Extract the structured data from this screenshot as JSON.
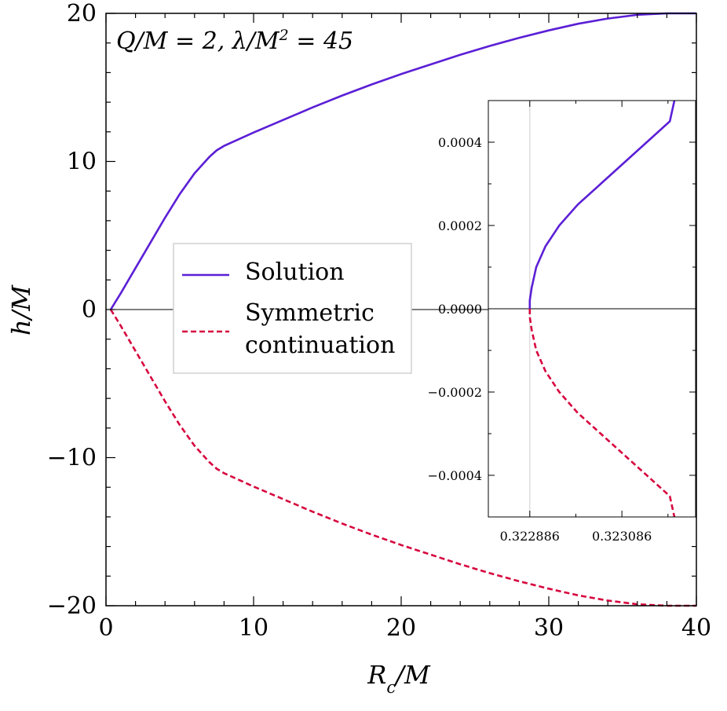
{
  "annotation_parts": [
    "Q/M = 2, λ/M",
    "2",
    " = 45"
  ],
  "chart_data": [
    {
      "type": "line",
      "xlabel_parts": [
        "R",
        "c",
        "/M"
      ],
      "ylabel": "h/M",
      "xlim": [
        0,
        40
      ],
      "ylim": [
        -20,
        20
      ],
      "xticks": [
        0,
        10,
        20,
        30,
        40
      ],
      "xtick_labels": [
        "0",
        "10",
        "20",
        "30",
        "40"
      ],
      "yticks": [
        -20,
        -10,
        0,
        10,
        20
      ],
      "ytick_labels": [
        "−20",
        "−10",
        "0",
        "10",
        "20"
      ],
      "grid": false,
      "legend_position": "center-left",
      "legend_entries": [
        {
          "lines": [
            "Solution"
          ],
          "color": "#5b1fd6",
          "style": "solid"
        },
        {
          "lines": [
            "Symmetric",
            "continuation"
          ],
          "color": "#d6073e",
          "style": "dashed"
        }
      ],
      "series": [
        {
          "color": "#5b1fd6",
          "style": "solid",
          "x": [
            0.32,
            1,
            2,
            3,
            4,
            5,
            6,
            7,
            7.5,
            8,
            9,
            10,
            12,
            14,
            16,
            18,
            20,
            22,
            24,
            26,
            28,
            30,
            32,
            34,
            36,
            38,
            40
          ],
          "y": [
            0,
            1.1,
            2.8,
            4.5,
            6.2,
            7.8,
            9.2,
            10.3,
            10.75,
            11.05,
            11.5,
            11.95,
            12.8,
            13.65,
            14.45,
            15.2,
            15.9,
            16.55,
            17.2,
            17.8,
            18.35,
            18.85,
            19.3,
            19.65,
            19.9,
            20.0,
            20.0
          ]
        },
        {
          "color": "#d6073e",
          "style": "dashed",
          "x": [
            0.32,
            1,
            2,
            3,
            4,
            5,
            6,
            7,
            7.5,
            8,
            9,
            10,
            12,
            14,
            16,
            18,
            20,
            22,
            24,
            26,
            28,
            30,
            32,
            34,
            36,
            38,
            40
          ],
          "y": [
            0,
            -1.1,
            -2.8,
            -4.5,
            -6.2,
            -7.8,
            -9.2,
            -10.3,
            -10.75,
            -11.05,
            -11.5,
            -11.95,
            -12.8,
            -13.65,
            -14.45,
            -15.2,
            -15.9,
            -16.55,
            -17.2,
            -17.8,
            -18.35,
            -18.85,
            -19.3,
            -19.65,
            -19.9,
            -20.0,
            -20.0
          ]
        }
      ]
    },
    {
      "type": "line",
      "panel": "inset",
      "xlim": [
        0.322796,
        0.323246
      ],
      "ylim": [
        -0.0005,
        0.0005
      ],
      "xticks": [
        0.322886,
        0.323086
      ],
      "xtick_labels": [
        "0.322886",
        "0.323086"
      ],
      "yticks": [
        -0.0004,
        -0.0002,
        0.0,
        0.0002,
        0.0004
      ],
      "ytick_labels": [
        "−0.0004",
        "−0.0002",
        "0.0000",
        "0.0002",
        "0.0004"
      ],
      "vline_x": 0.322886,
      "series": [
        {
          "color": "#5b1fd6",
          "style": "solid",
          "x": [
            0.322886,
            0.322886,
            0.32289,
            0.3229,
            0.32292,
            0.32295,
            0.32299,
            0.32304,
            0.32309,
            0.32314,
            0.32319,
            0.3232
          ],
          "y": [
            0.0,
            2e-05,
            5e-05,
            0.0001,
            0.00015,
            0.0002,
            0.00025,
            0.0003,
            0.00035,
            0.0004,
            0.00045,
            0.0005
          ]
        },
        {
          "color": "#d6073e",
          "style": "dashed",
          "x": [
            0.322886,
            0.322886,
            0.32289,
            0.3229,
            0.32292,
            0.32295,
            0.32299,
            0.32304,
            0.32309,
            0.32314,
            0.32319,
            0.3232
          ],
          "y": [
            0.0,
            -2e-05,
            -5e-05,
            -0.0001,
            -0.00015,
            -0.0002,
            -0.00025,
            -0.0003,
            -0.00035,
            -0.0004,
            -0.00045,
            -0.0005
          ]
        }
      ]
    }
  ]
}
